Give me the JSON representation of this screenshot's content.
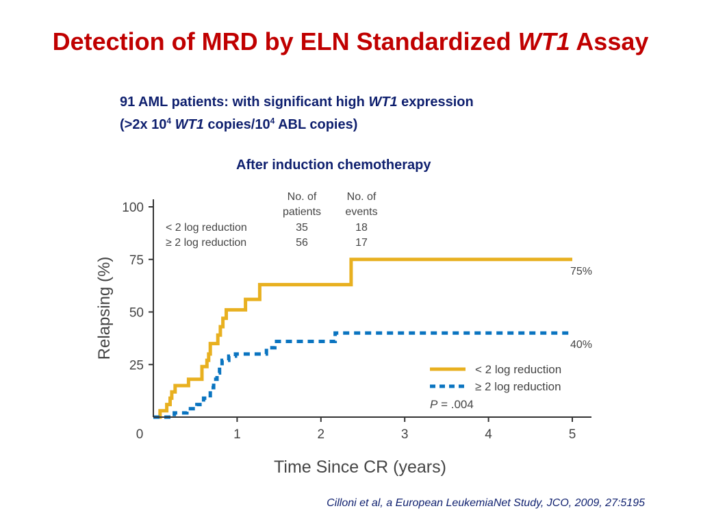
{
  "slide": {
    "title_before": "Detection of MRD by ELN Standardized ",
    "title_italic": "WT1",
    "title_after": " Assay",
    "subtitle_line1_before": "91 AML patients: with significant high ",
    "subtitle_line1_italic": "WT1",
    "subtitle_line1_after": " expression",
    "subtitle_line2_a": "(>2x 10",
    "subtitle_line2_sup1": "4",
    "subtitle_line2_italic": "WT1",
    "subtitle_line2_b": " copies/10",
    "subtitle_line2_sup2": "4",
    "subtitle_line2_c": " ABL copies)",
    "induction_label": "After induction chemotherapy",
    "citation": "Cilloni et al, a European LeukemiaNet Study, JCO, 2009, 27:5195"
  },
  "chart_data": {
    "type": "line",
    "xlabel": "Time Since CR (years)",
    "ylabel": "Relapsing (%)",
    "xlim": [
      0,
      5
    ],
    "ylim": [
      0,
      100
    ],
    "xticks": [
      "0",
      "1",
      "2",
      "3",
      "4",
      "5"
    ],
    "yticks": [
      "25",
      "50",
      "75",
      "100"
    ],
    "grid": false,
    "legend_position": "bottom-right",
    "pvalue_italic": "P",
    "pvalue_text": " = .004",
    "table": {
      "header_patients_1": "No. of",
      "header_patients_2": "patients",
      "header_events_1": "No. of",
      "header_events_2": "events",
      "rows": [
        {
          "label": "< 2 log reduction",
          "patients": "35",
          "events": "18"
        },
        {
          "label": "≥ 2 log reduction",
          "patients": "56",
          "events": "17"
        }
      ]
    },
    "series": [
      {
        "name": "< 2 log reduction",
        "color": "#e8b020",
        "dash": "solid",
        "end_label": "75%",
        "points": [
          [
            0,
            0
          ],
          [
            0.08,
            0
          ],
          [
            0.08,
            3
          ],
          [
            0.16,
            3
          ],
          [
            0.16,
            6
          ],
          [
            0.2,
            6
          ],
          [
            0.2,
            9
          ],
          [
            0.22,
            9
          ],
          [
            0.22,
            12
          ],
          [
            0.26,
            12
          ],
          [
            0.26,
            15
          ],
          [
            0.42,
            15
          ],
          [
            0.42,
            18
          ],
          [
            0.58,
            18
          ],
          [
            0.58,
            24
          ],
          [
            0.64,
            24
          ],
          [
            0.64,
            27
          ],
          [
            0.66,
            27
          ],
          [
            0.66,
            30
          ],
          [
            0.68,
            30
          ],
          [
            0.68,
            35
          ],
          [
            0.77,
            35
          ],
          [
            0.77,
            39
          ],
          [
            0.8,
            39
          ],
          [
            0.8,
            43
          ],
          [
            0.83,
            43
          ],
          [
            0.83,
            47
          ],
          [
            0.87,
            47
          ],
          [
            0.87,
            51
          ],
          [
            1.1,
            51
          ],
          [
            1.1,
            56
          ],
          [
            1.27,
            56
          ],
          [
            1.27,
            63
          ],
          [
            2.36,
            63
          ],
          [
            2.36,
            75
          ],
          [
            5.0,
            75
          ]
        ]
      },
      {
        "name": "≥ 2 log reduction",
        "color": "#0a74c0",
        "dash": "dashed",
        "end_label": "40%",
        "points": [
          [
            0,
            0
          ],
          [
            0.25,
            0
          ],
          [
            0.25,
            2
          ],
          [
            0.4,
            2
          ],
          [
            0.4,
            4
          ],
          [
            0.52,
            4
          ],
          [
            0.52,
            6
          ],
          [
            0.6,
            6
          ],
          [
            0.6,
            9
          ],
          [
            0.68,
            9
          ],
          [
            0.68,
            14
          ],
          [
            0.72,
            14
          ],
          [
            0.72,
            18
          ],
          [
            0.76,
            18
          ],
          [
            0.76,
            21
          ],
          [
            0.79,
            21
          ],
          [
            0.79,
            24
          ],
          [
            0.82,
            24
          ],
          [
            0.82,
            27
          ],
          [
            0.9,
            27
          ],
          [
            0.9,
            29
          ],
          [
            0.98,
            29
          ],
          [
            0.98,
            30
          ],
          [
            1.35,
            30
          ],
          [
            1.35,
            33
          ],
          [
            1.45,
            33
          ],
          [
            1.45,
            36
          ],
          [
            2.17,
            36
          ],
          [
            2.17,
            40
          ],
          [
            5.0,
            40
          ]
        ]
      }
    ]
  }
}
